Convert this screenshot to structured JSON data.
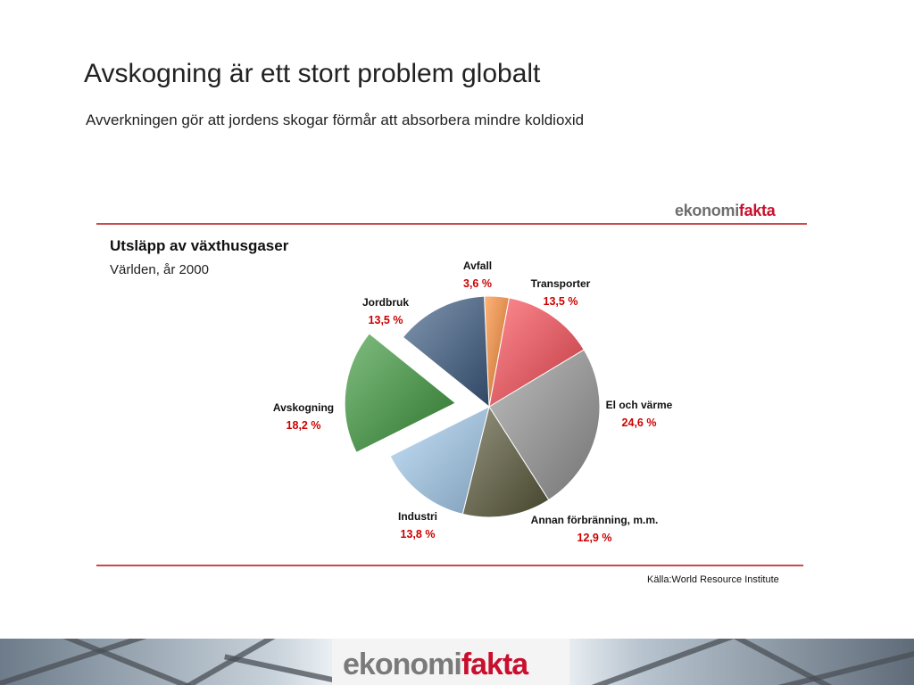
{
  "slide": {
    "title": "Avskogning är ett stort problem globalt",
    "subtitle": "Avverkningen gör att jordens skogar förmår att absorbera mindre koldioxid"
  },
  "brand": {
    "part_a": "ekonomi",
    "part_b": "fakta"
  },
  "source": "Källa:World Resource Institute",
  "chart_data": {
    "type": "pie",
    "title": "Utsläpp av växthusgaser",
    "subtitle": "Världen, år 2000",
    "unit": "%",
    "slices": [
      {
        "name": "Avfall",
        "value": 3.6,
        "label": "3,6 %",
        "color": "#ff8c33",
        "exploded": false
      },
      {
        "name": "Transporter",
        "value": 13.5,
        "label": "13,5 %",
        "color": "#ff4d57",
        "exploded": false
      },
      {
        "name": "El och värme",
        "value": 24.6,
        "label": "24,6 %",
        "color": "#9a9a9a",
        "exploded": false
      },
      {
        "name": "Annan förbränning, m.m.",
        "value": 12.9,
        "label": "12,9 %",
        "color": "#5c5a3a",
        "exploded": false
      },
      {
        "name": "Industri",
        "value": 13.8,
        "label": "13,8 %",
        "color": "#a9d2f5",
        "exploded": false
      },
      {
        "name": "Avskogning",
        "value": 18.2,
        "label": "18,2 %",
        "color": "#3c9a3c",
        "exploded": true
      },
      {
        "name": "Jordbruk",
        "value": 13.5,
        "label": "13,5 %",
        "color": "#3f5f86",
        "exploded": false
      }
    ]
  }
}
